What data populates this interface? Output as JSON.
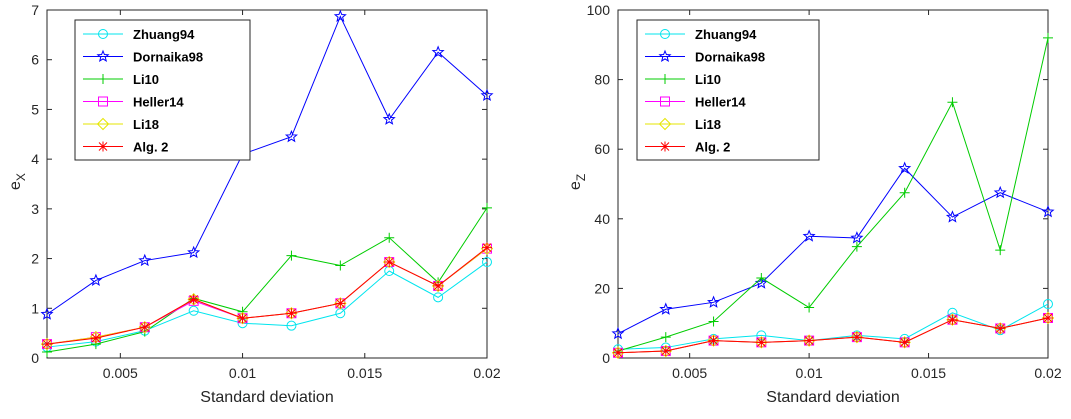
{
  "chart_data": [
    {
      "type": "line",
      "xlabel": "Standard deviation",
      "ylabel": "e",
      "ylabel_sub": "X",
      "xlim": [
        0.002,
        0.02
      ],
      "ylim": [
        0,
        7
      ],
      "xticks": [
        0.005,
        0.01,
        0.015,
        0.02
      ],
      "xtick_labels": [
        "0.005",
        "0.01",
        "0.015",
        "0.02"
      ],
      "yticks": [
        0,
        1,
        2,
        3,
        4,
        5,
        6,
        7
      ],
      "ytick_labels": [
        "0",
        "1",
        "2",
        "3",
        "4",
        "5",
        "6",
        "7"
      ],
      "legend_position": "top-left",
      "grid": false,
      "x": [
        0.002,
        0.004,
        0.006,
        0.008,
        0.01,
        0.012,
        0.014,
        0.016,
        0.018,
        0.02
      ],
      "series": [
        {
          "name": "Zhuang94",
          "color": "#00e5ee",
          "marker": "circle",
          "values": [
            0.22,
            0.33,
            0.55,
            0.95,
            0.7,
            0.65,
            0.9,
            1.75,
            1.22,
            1.93
          ]
        },
        {
          "name": "Dornaika98",
          "color": "#0000ff",
          "marker": "star",
          "values": [
            0.88,
            1.56,
            1.96,
            2.12,
            4.1,
            4.45,
            6.87,
            4.8,
            6.15,
            5.28
          ]
        },
        {
          "name": "Li10",
          "color": "#00cc00",
          "marker": "plus",
          "values": [
            0.12,
            0.28,
            0.53,
            1.2,
            0.93,
            2.06,
            1.86,
            2.42,
            1.52,
            3.02
          ]
        },
        {
          "name": "Heller14",
          "color": "#ff00ff",
          "marker": "square",
          "values": [
            0.28,
            0.42,
            0.62,
            1.15,
            0.8,
            0.9,
            1.1,
            1.93,
            1.45,
            2.2
          ]
        },
        {
          "name": "Li18",
          "color": "#e6e600",
          "marker": "diamond",
          "values": [
            0.28,
            0.42,
            0.62,
            1.18,
            0.8,
            0.9,
            1.1,
            1.93,
            1.45,
            2.2
          ]
        },
        {
          "name": "Alg. 2",
          "color": "#ff0000",
          "marker": "asterisk",
          "values": [
            0.28,
            0.4,
            0.62,
            1.18,
            0.8,
            0.9,
            1.1,
            1.93,
            1.45,
            2.22
          ]
        }
      ]
    },
    {
      "type": "line",
      "xlabel": "Standard deviation",
      "ylabel": "e",
      "ylabel_sub": "Z",
      "xlim": [
        0.002,
        0.02
      ],
      "ylim": [
        0,
        100
      ],
      "xticks": [
        0.005,
        0.01,
        0.015,
        0.02
      ],
      "xtick_labels": [
        "0.005",
        "0.01",
        "0.015",
        "0.02"
      ],
      "yticks": [
        0,
        20,
        40,
        60,
        80,
        100
      ],
      "ytick_labels": [
        "0",
        "20",
        "40",
        "60",
        "80",
        "100"
      ],
      "legend_position": "top-left",
      "grid": false,
      "x": [
        0.002,
        0.004,
        0.006,
        0.008,
        0.01,
        0.012,
        0.014,
        0.016,
        0.018,
        0.02
      ],
      "series": [
        {
          "name": "Zhuang94",
          "color": "#00e5ee",
          "marker": "circle",
          "values": [
            2.5,
            3.0,
            5.5,
            6.5,
            5.0,
            6.5,
            5.5,
            13.0,
            8.0,
            15.5
          ]
        },
        {
          "name": "Dornaika98",
          "color": "#0000ff",
          "marker": "star",
          "values": [
            7.0,
            14.0,
            16.0,
            21.5,
            35.0,
            34.5,
            54.5,
            40.5,
            47.5,
            42.0
          ]
        },
        {
          "name": "Li10",
          "color": "#00cc00",
          "marker": "plus",
          "values": [
            2.0,
            6.0,
            10.5,
            23.0,
            14.5,
            32.0,
            47.5,
            73.5,
            31.0,
            92.0
          ]
        },
        {
          "name": "Heller14",
          "color": "#ff00ff",
          "marker": "square",
          "values": [
            1.5,
            2.0,
            5.0,
            4.5,
            5.0,
            6.0,
            4.5,
            11.0,
            8.5,
            11.5
          ]
        },
        {
          "name": "Li18",
          "color": "#e6e600",
          "marker": "diamond",
          "values": [
            1.5,
            2.0,
            5.0,
            4.5,
            5.0,
            6.0,
            4.5,
            11.0,
            8.5,
            11.5
          ]
        },
        {
          "name": "Alg. 2",
          "color": "#ff0000",
          "marker": "asterisk",
          "values": [
            1.5,
            2.0,
            5.0,
            4.5,
            5.0,
            6.0,
            4.5,
            11.0,
            8.5,
            11.5
          ]
        }
      ]
    }
  ]
}
